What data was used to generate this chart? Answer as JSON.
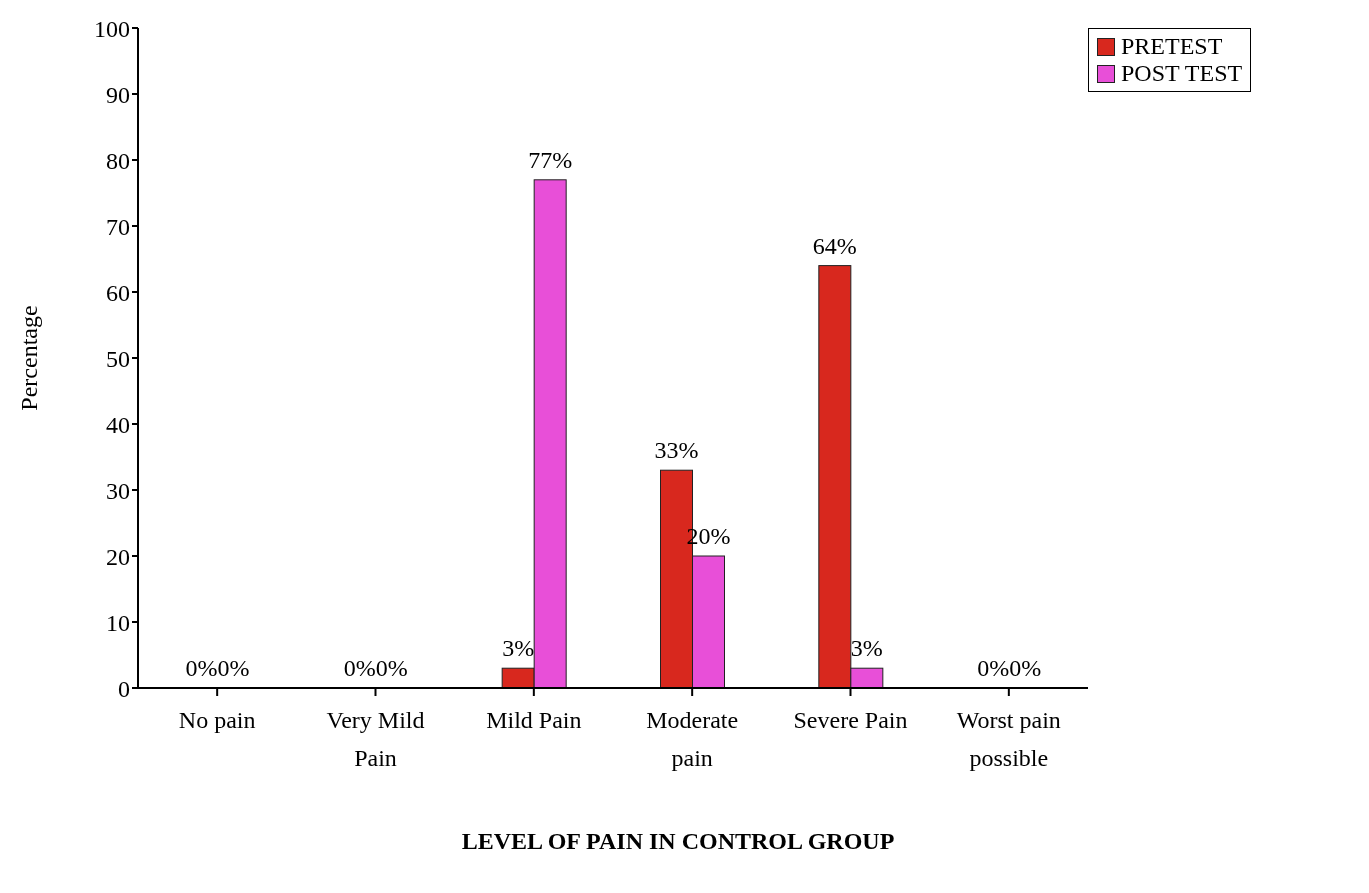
{
  "chart_data": {
    "type": "bar",
    "xlabel": "LEVEL OF PAIN IN CONTROL GROUP",
    "ylabel": "Percentage",
    "categories": [
      "No pain",
      "Very Mild Pain",
      "Mild Pain",
      "Moderate pain",
      "Severe Pain",
      "Worst pain possible"
    ],
    "series": [
      {
        "name": "PRETEST",
        "color": "#d8281e",
        "values": [
          0,
          0,
          3,
          33,
          64,
          0
        ],
        "value_labels": [
          "0%",
          "0%",
          "3%",
          "33%",
          "64%",
          "0%"
        ]
      },
      {
        "name": "POST TEST",
        "color": "#e84fd8",
        "values": [
          0,
          0,
          77,
          20,
          3,
          0
        ],
        "value_labels": [
          "0%",
          "0%",
          "77%",
          "20%",
          "3%",
          "0%"
        ]
      }
    ],
    "ylim": [
      0,
      100
    ],
    "yticks": [
      0,
      10,
      20,
      30,
      40,
      50,
      60,
      70,
      80,
      90,
      100
    ],
    "grid": false,
    "legend": "top right"
  }
}
